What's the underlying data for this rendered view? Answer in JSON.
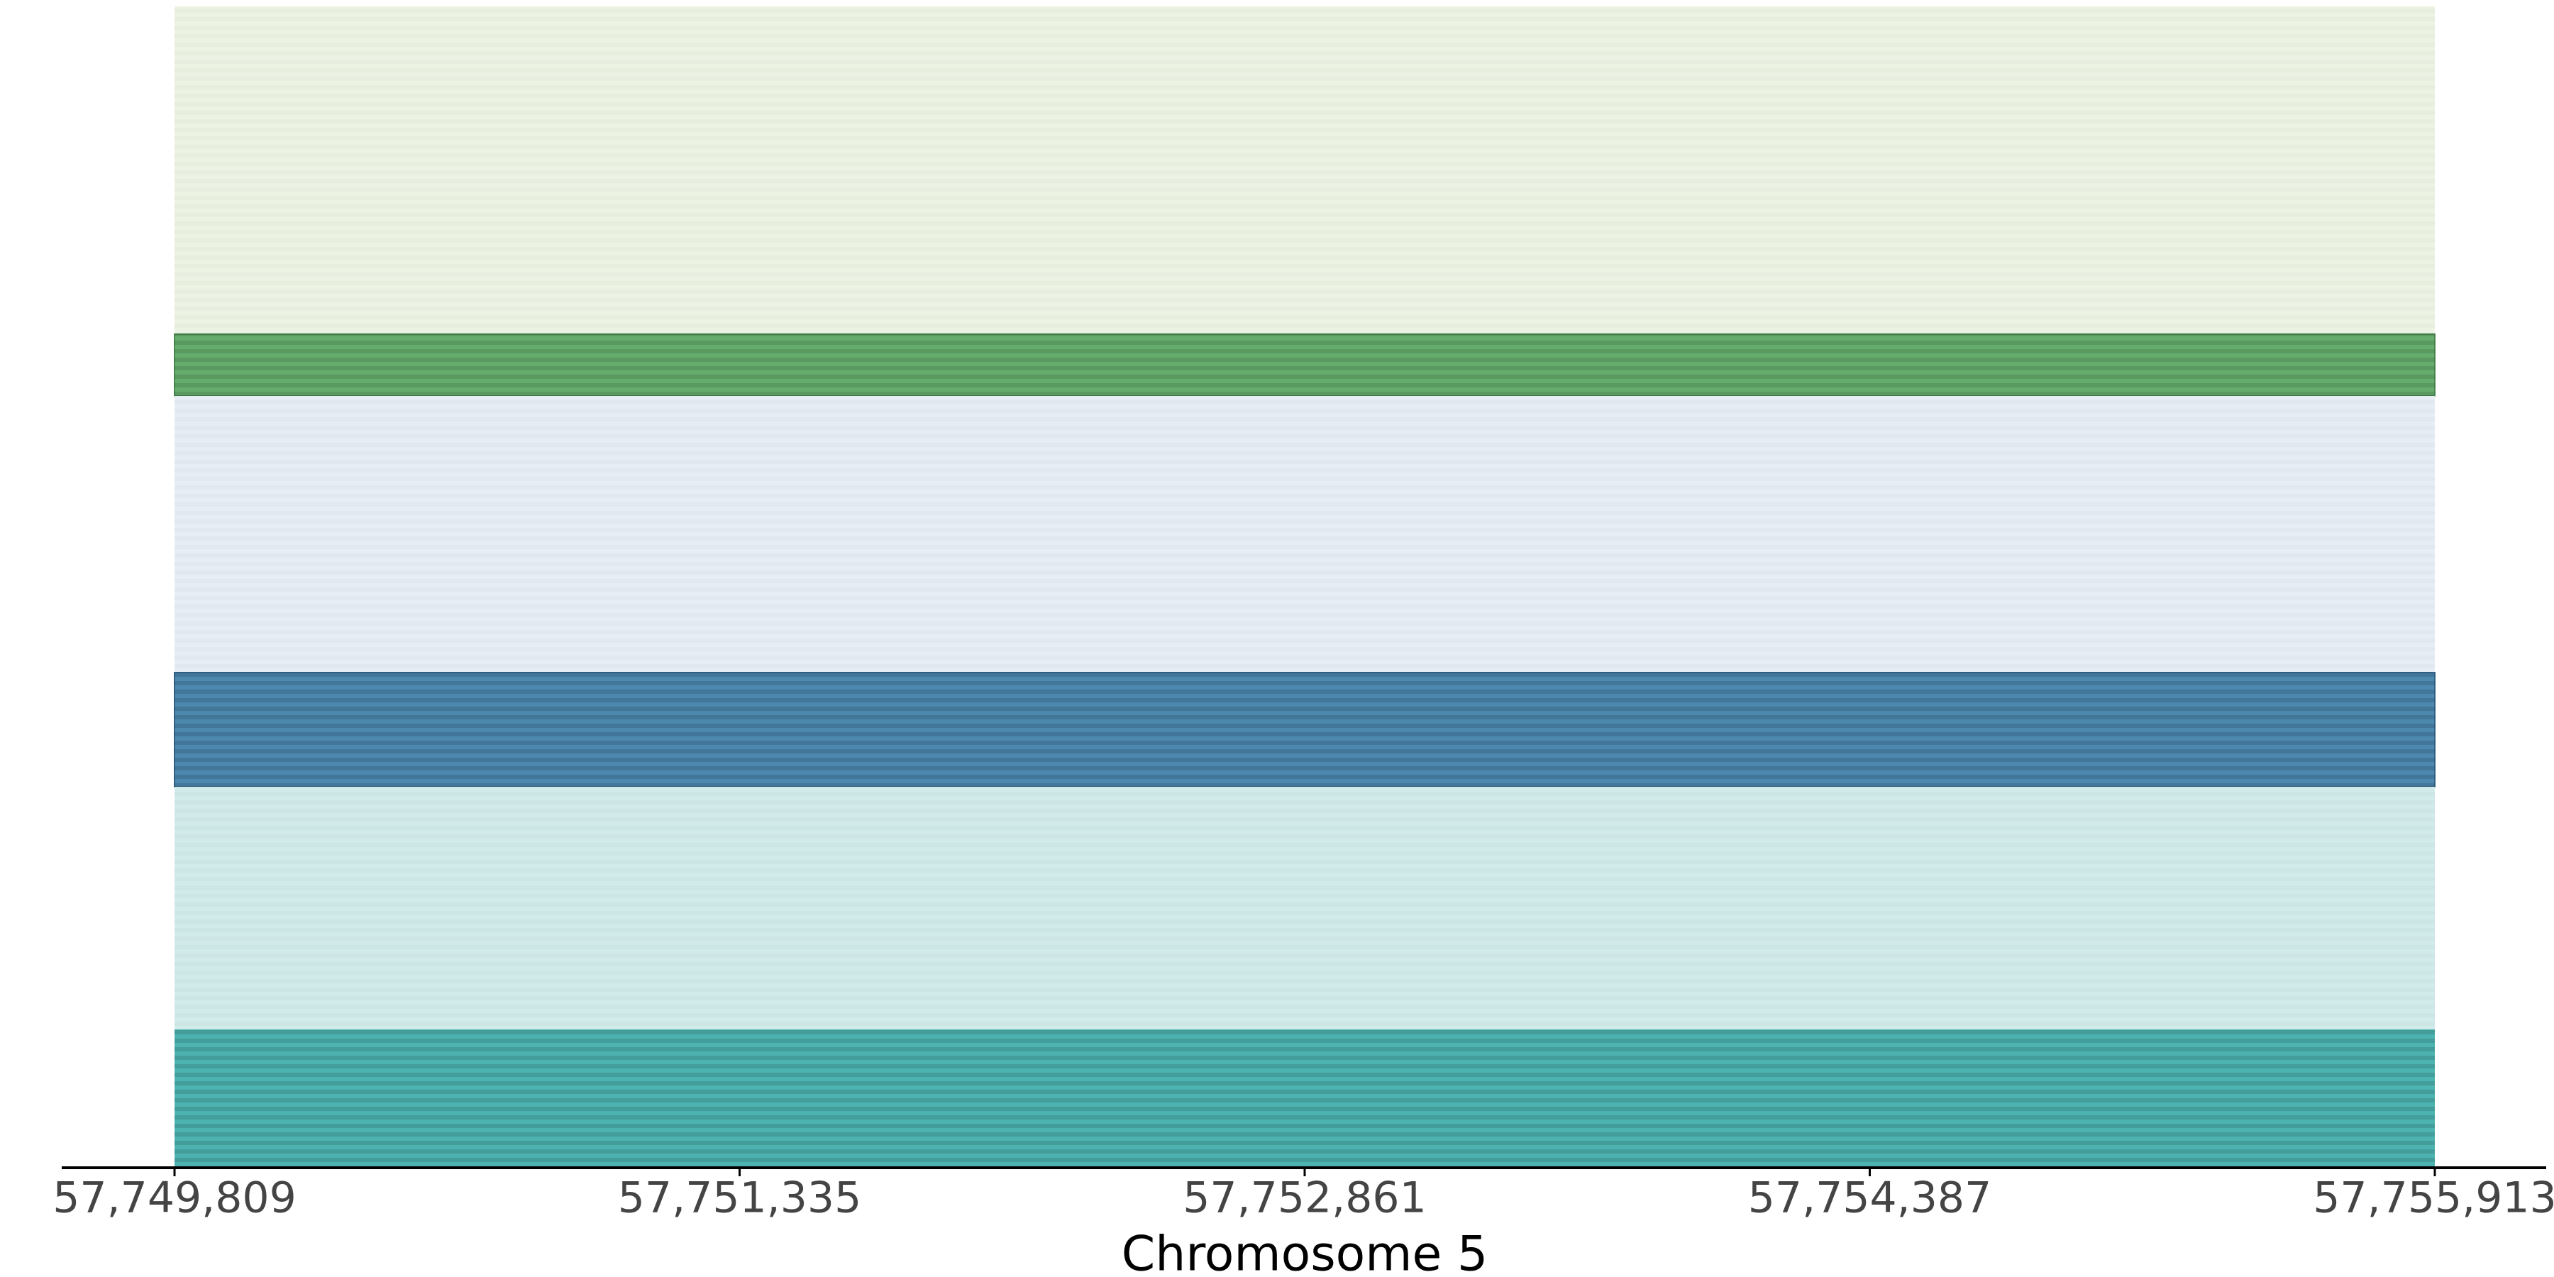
{
  "chart_data": {
    "type": "tracks",
    "xlabel": "Chromosome 5",
    "xlim": [
      57749809,
      57755913
    ],
    "xticks": [
      {
        "value": 57749809,
        "label": "57,749,809"
      },
      {
        "value": 57751335,
        "label": "57,751,335"
      },
      {
        "value": 57752861,
        "label": "57,752,861"
      },
      {
        "value": 57754387,
        "label": "57,754,387"
      },
      {
        "value": 57755913,
        "label": "57,755,913"
      }
    ]
  }
}
